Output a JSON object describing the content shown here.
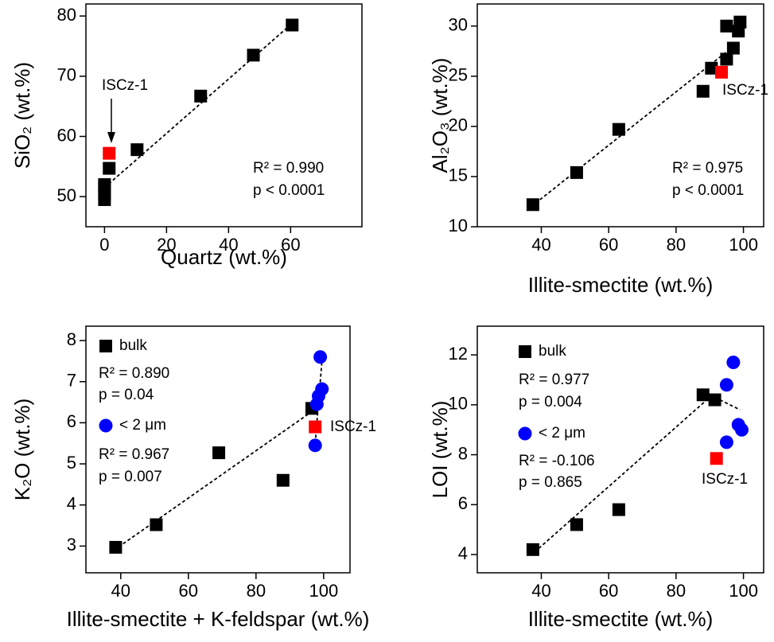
{
  "chart_data": [
    {
      "type": "scatter",
      "xlabel": "Quartz (wt.%)",
      "ylabel": "SiO₂ (wt.%)",
      "xlim": [
        -6,
        83
      ],
      "ylim": [
        45,
        82
      ],
      "xticks": [
        0,
        20,
        40,
        60
      ],
      "yticks": [
        50,
        60,
        70,
        80
      ],
      "series": [
        {
          "color": "#000000",
          "marker": "square",
          "x": [
            60.5,
            48,
            31,
            10.5,
            1.5,
            0,
            0,
            0,
            0
          ],
          "y": [
            78.5,
            73.5,
            66.7,
            57.8,
            54.7,
            52,
            51.5,
            50.5,
            49.5
          ]
        },
        {
          "color": "#ff0000",
          "marker": "square",
          "x": [
            1.5
          ],
          "y": [
            57.2
          ]
        }
      ],
      "fits": [
        {
          "color": "#000000",
          "x": [
            0,
            61
          ],
          "y": [
            51.5,
            79
          ]
        }
      ],
      "annotations": [
        "ISCz-1",
        "R² = 0.990",
        "p < 0.0001"
      ]
    },
    {
      "type": "scatter",
      "xlabel": "Illite-smectite (wt.%)",
      "ylabel": "Al₂O₃ (wt.%)",
      "xlim": [
        21,
        106
      ],
      "ylim": [
        10,
        32.2
      ],
      "xticks": [
        40,
        60,
        80,
        100
      ],
      "yticks": [
        10,
        15,
        20,
        25,
        30
      ],
      "series": [
        {
          "color": "#000000",
          "marker": "square",
          "x": [
            37.5,
            50.5,
            63,
            88,
            90.5,
            95,
            97,
            98.5,
            99,
            95
          ],
          "y": [
            12.2,
            15.4,
            19.7,
            23.5,
            25.8,
            26.7,
            27.8,
            29.5,
            30.4,
            30
          ]
        },
        {
          "color": "#ff0000",
          "marker": "square",
          "x": [
            93.5
          ],
          "y": [
            25.4
          ]
        }
      ],
      "fits": [
        {
          "color": "#000000",
          "x": [
            37,
            99
          ],
          "y": [
            12,
            28.5
          ]
        }
      ],
      "annotations": [
        "ISCz-1",
        "R² = 0.975",
        "p < 0.0001"
      ]
    },
    {
      "type": "scatter",
      "xlabel": "Illite-smectite + K-feldspar (wt.%)",
      "ylabel": "K₂O (wt.%)",
      "xlim": [
        29.7,
        107.8
      ],
      "ylim": [
        2.35,
        8.35
      ],
      "xticks": [
        40,
        60,
        80,
        100
      ],
      "yticks": [
        3,
        4,
        5,
        6,
        7,
        8
      ],
      "series": [
        {
          "name": "bulk",
          "color": "#000000",
          "marker": "square",
          "x": [
            38.5,
            50.5,
            69,
            88,
            96.5
          ],
          "y": [
            2.97,
            3.52,
            5.27,
            4.6,
            6.35
          ]
        },
        {
          "name": "< 2 μm",
          "color": "#0000ff",
          "marker": "circle",
          "x": [
            99,
            99.5,
            98.5,
            98,
            97.5
          ],
          "y": [
            7.6,
            6.82,
            6.65,
            6.45,
            5.45
          ]
        },
        {
          "color": "#ff0000",
          "marker": "square",
          "x": [
            97.5
          ],
          "y": [
            5.9
          ]
        }
      ],
      "fits": [
        {
          "color": "#000000",
          "x": [
            38,
            97
          ],
          "y": [
            2.9,
            6.3
          ]
        },
        {
          "color": "#000000",
          "x": [
            97.5,
            99.5
          ],
          "y": [
            5.5,
            7.5
          ]
        }
      ],
      "legend": "upper left",
      "annotations": [
        "R² = 0.890",
        "p = 0.04",
        "R² = 0.967",
        "p = 0.007",
        "ISCz-1"
      ]
    },
    {
      "type": "scatter",
      "xlabel": "Illite-smectite (wt.%)",
      "ylabel": "LOI (wt.%)",
      "xlim": [
        21,
        106
      ],
      "ylim": [
        3.27,
        13.15
      ],
      "xticks": [
        40,
        60,
        80,
        100
      ],
      "yticks": [
        4,
        6,
        8,
        10,
        12
      ],
      "series": [
        {
          "name": "bulk",
          "color": "#000000",
          "marker": "square",
          "x": [
            37.5,
            50.5,
            63,
            88,
            91.5
          ],
          "y": [
            4.2,
            5.2,
            5.8,
            10.4,
            10.2
          ]
        },
        {
          "name": "< 2 μm",
          "color": "#0000ff",
          "marker": "circle",
          "x": [
            97,
            95,
            98.5,
            99.5,
            95
          ],
          "y": [
            11.7,
            10.8,
            9.2,
            9,
            8.5
          ]
        },
        {
          "color": "#ff0000",
          "marker": "square",
          "x": [
            92
          ],
          "y": [
            7.85
          ]
        }
      ],
      "fits": [
        {
          "color": "#000000",
          "x": [
            38,
            90
          ],
          "y": [
            4.1,
            10.3
          ]
        },
        {
          "color": "#000000",
          "x": [
            93,
            99
          ],
          "y": [
            10.2,
            9.8
          ]
        }
      ],
      "legend": "upper left",
      "annotations": [
        "R² = 0.977",
        "p = 0.004",
        "R² = -0.106",
        "p = 0.865",
        "ISCz-1"
      ]
    }
  ]
}
